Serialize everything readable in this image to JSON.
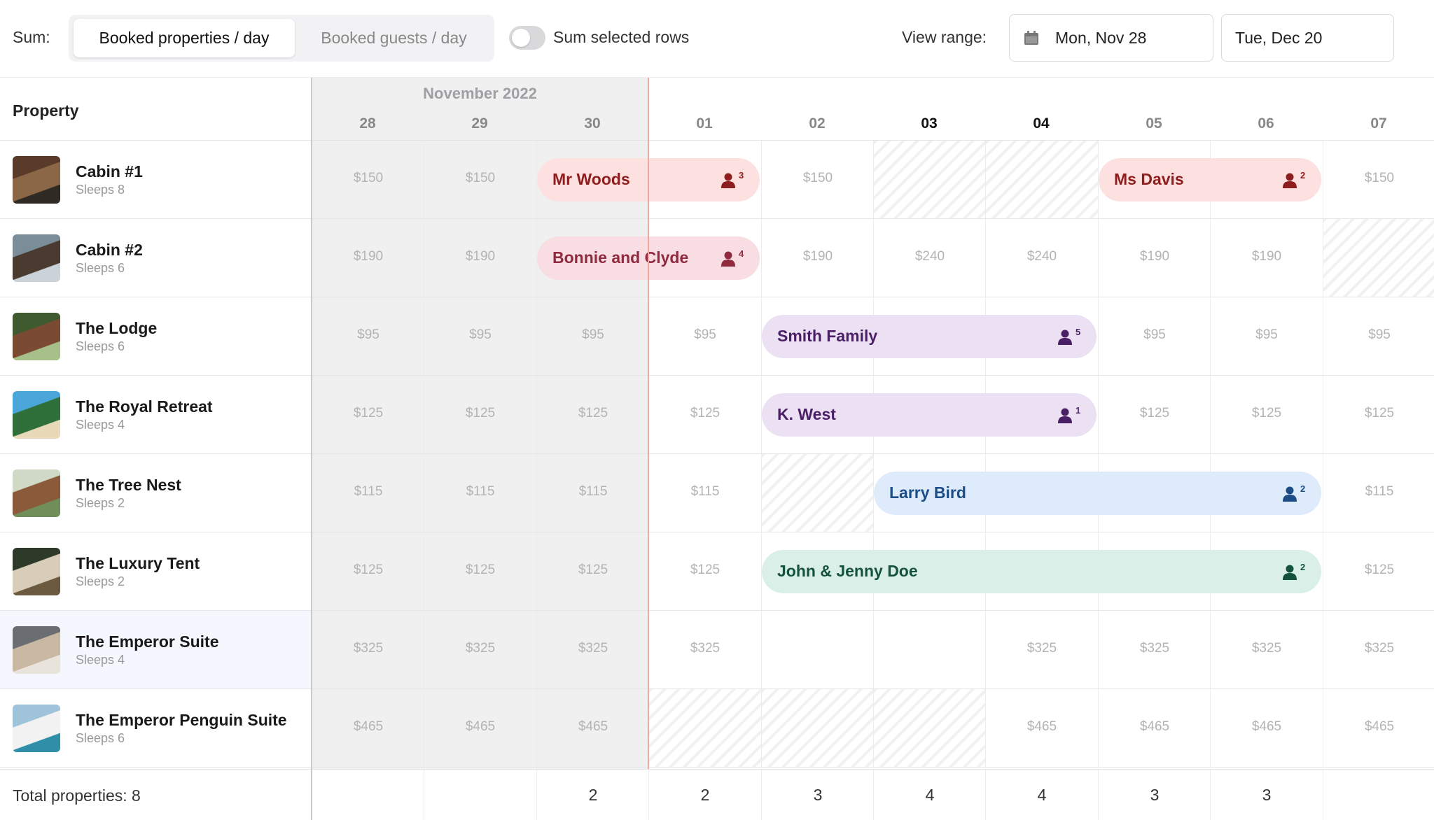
{
  "toolbar": {
    "sum_label": "Sum:",
    "segments": [
      "Booked properties / day",
      "Booked guests / day"
    ],
    "active_segment": 0,
    "toggle_on": false,
    "toggle_label": "Sum selected rows",
    "range_label": "View range:",
    "range_start": "Mon, Nov 28",
    "range_end": "Tue, Dec 20"
  },
  "header": {
    "property_label": "Property",
    "month": "November 2022",
    "days": [
      "28",
      "29",
      "30",
      "01",
      "02",
      "03",
      "04",
      "05",
      "06",
      "07"
    ],
    "emphasized_days": [
      "03",
      "04"
    ]
  },
  "properties": [
    {
      "name": "Cabin #1",
      "sleeps": "Sleeps 8",
      "prices": [
        "$150",
        "$150",
        "",
        "",
        "$150",
        "",
        "",
        "",
        "",
        "$150"
      ],
      "unavailable_days": [
        5,
        6
      ],
      "bookings": [
        {
          "name": "Mr Woods",
          "guests": "3",
          "start": 2,
          "end": 3,
          "theme": "red"
        },
        {
          "name": "Ms Davis",
          "guests": "2",
          "start": 7,
          "end": 8,
          "theme": "red"
        }
      ]
    },
    {
      "name": "Cabin #2",
      "sleeps": "Sleeps 6",
      "prices": [
        "$190",
        "$190",
        "",
        "",
        "$190",
        "$240",
        "$240",
        "$190",
        "$190",
        ""
      ],
      "unavailable_days": [
        9
      ],
      "bookings": [
        {
          "name": "Bonnie and Clyde",
          "guests": "4",
          "start": 2,
          "end": 3,
          "theme": "pink"
        }
      ]
    },
    {
      "name": "The Lodge",
      "sleeps": "Sleeps 6",
      "prices": [
        "$95",
        "$95",
        "$95",
        "$95",
        "",
        "",
        "",
        "$95",
        "$95",
        "$95"
      ],
      "unavailable_days": [],
      "bookings": [
        {
          "name": "Smith Family",
          "guests": "5",
          "start": 4,
          "end": 6,
          "theme": "purple"
        }
      ]
    },
    {
      "name": "The Royal Retreat",
      "sleeps": "Sleeps 4",
      "prices": [
        "$125",
        "$125",
        "$125",
        "$125",
        "",
        "",
        "",
        "$125",
        "$125",
        "$125"
      ],
      "unavailable_days": [],
      "bookings": [
        {
          "name": "K. West",
          "guests": "1",
          "start": 4,
          "end": 6,
          "theme": "purple"
        }
      ]
    },
    {
      "name": "The Tree Nest",
      "sleeps": "Sleeps 2",
      "prices": [
        "$115",
        "$115",
        "$115",
        "$115",
        "",
        "",
        "",
        "",
        "",
        "$115"
      ],
      "unavailable_days": [
        4
      ],
      "bookings": [
        {
          "name": "Larry Bird",
          "guests": "2",
          "start": 5,
          "end": 8,
          "theme": "blue"
        }
      ]
    },
    {
      "name": "The Luxury Tent",
      "sleeps": "Sleeps 2",
      "prices": [
        "$125",
        "$125",
        "$125",
        "$125",
        "",
        "",
        "",
        "",
        "",
        "$125"
      ],
      "unavailable_days": [],
      "bookings": [
        {
          "name": "John & Jenny Doe",
          "guests": "2",
          "start": 4,
          "end": 8,
          "theme": "green"
        }
      ]
    },
    {
      "name": "The Emperor Suite",
      "sleeps": "Sleeps 4",
      "prices": [
        "$325",
        "$325",
        "$325",
        "$325",
        "",
        "",
        "$325",
        "$325",
        "$325",
        "$325"
      ],
      "unavailable_days": [],
      "bookings": [],
      "highlighted": true
    },
    {
      "name": "The Emperor Penguin Suite",
      "sleeps": "Sleeps 6",
      "prices": [
        "$465",
        "$465",
        "$465",
        "",
        "",
        "",
        "$465",
        "$465",
        "$465",
        "$465"
      ],
      "unavailable_days": [
        3,
        4,
        5
      ],
      "bookings": []
    }
  ],
  "footer": {
    "total_label": "Total properties: 8",
    "day_totals": [
      "",
      "",
      "2",
      "2",
      "3",
      "4",
      "4",
      "3",
      "3",
      ""
    ]
  },
  "themes": {
    "red": {
      "bg": "#fde1e1",
      "fg": "#8e1d1d"
    },
    "pink": {
      "bg": "#f8dde3",
      "fg": "#8f2a3f"
    },
    "purple": {
      "bg": "#ece0f3",
      "fg": "#4a1f66"
    },
    "blue": {
      "bg": "#ddebfa",
      "fg": "#1c4d86"
    },
    "green": {
      "bg": "#d9efe8",
      "fg": "#14513f"
    }
  },
  "icons": {
    "calendar": "calendar-icon",
    "guests": "person-icon"
  }
}
